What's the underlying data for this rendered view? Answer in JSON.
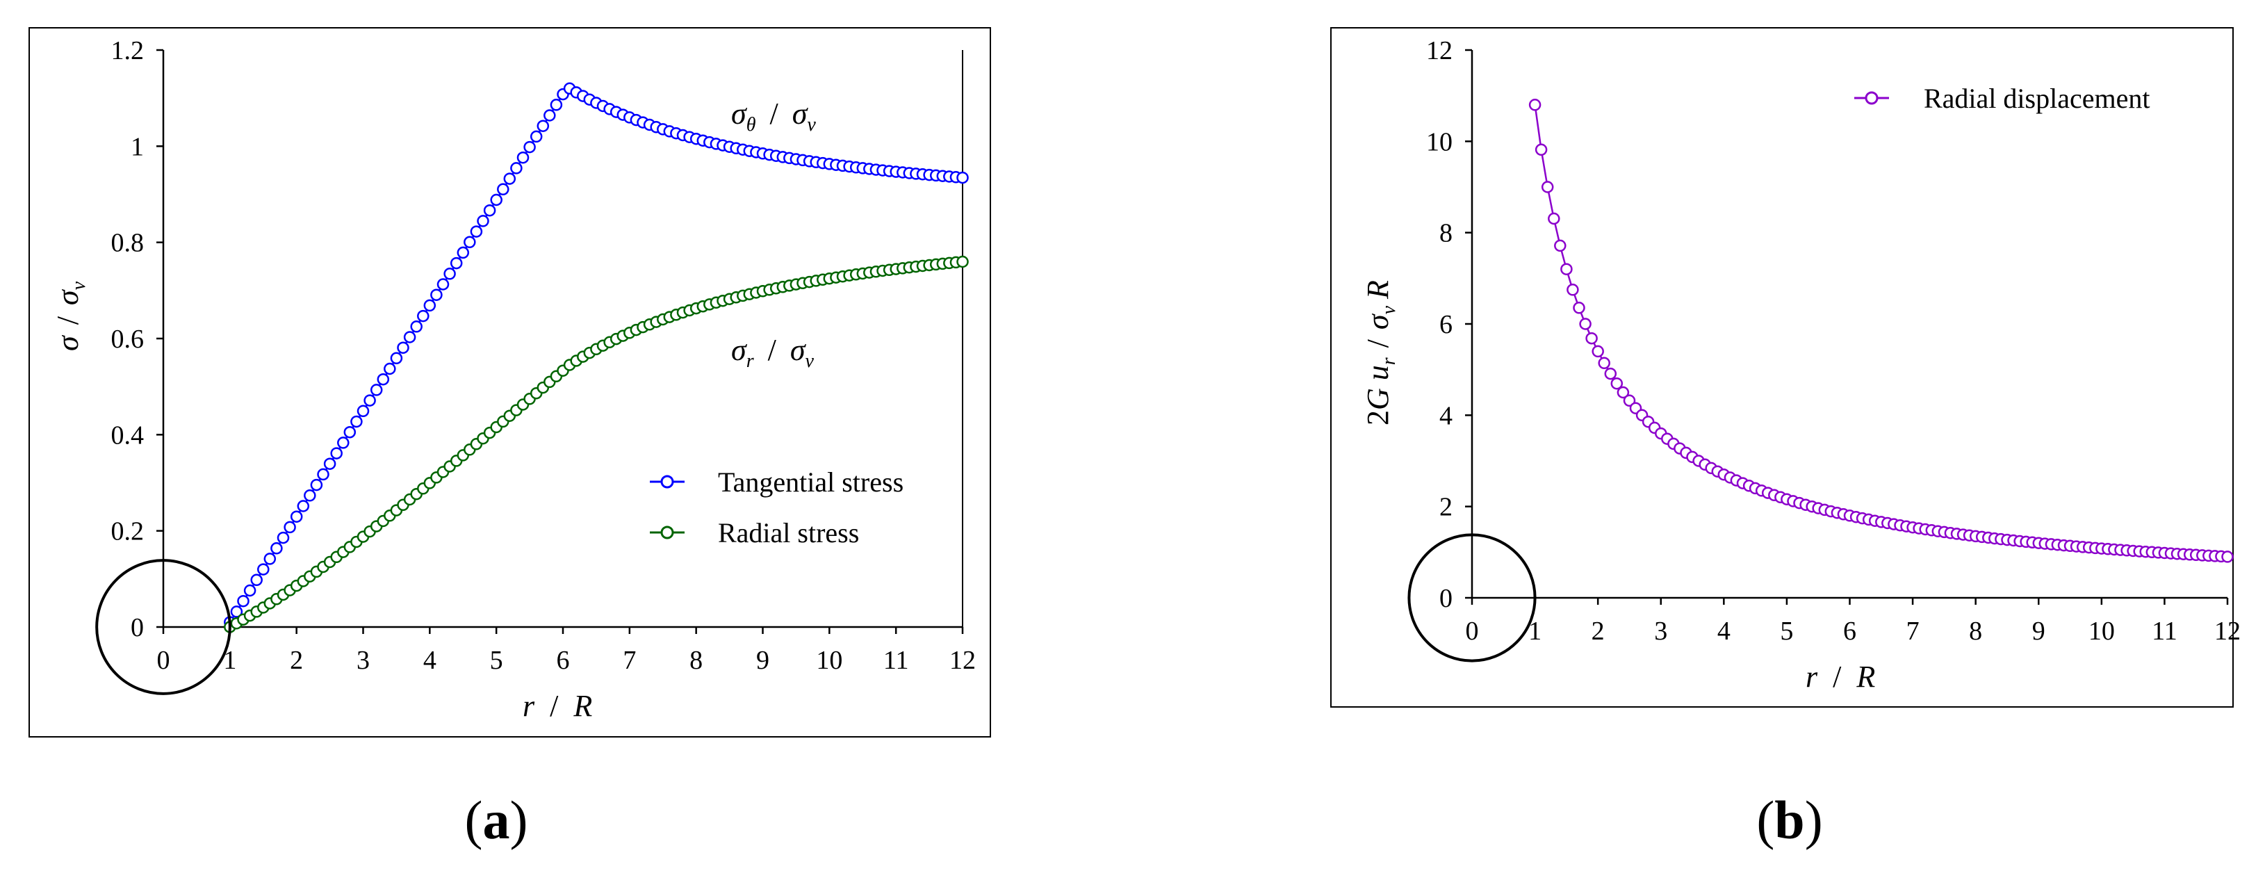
{
  "chart_data": [
    {
      "id": "a",
      "type": "line",
      "caption": "a",
      "xlabel": {
        "sym1": "r",
        "slash": "/",
        "sym2": "R"
      },
      "ylabel": {
        "sym1": "σ",
        "slash": "/",
        "sym2": "σ",
        "sub2": "v"
      },
      "xlim": [
        0,
        12
      ],
      "ylim": [
        0,
        1.2
      ],
      "xticks": [
        "0",
        "1",
        "2",
        "3",
        "4",
        "5",
        "6",
        "7",
        "8",
        "9",
        "10",
        "11",
        "12"
      ],
      "yticks": [
        "0",
        "0.2",
        "0.4",
        "0.6",
        "0.8",
        "1",
        "1.2"
      ],
      "annotations": [
        {
          "sym1": "σ",
          "sub1": "θ",
          "slash": "/",
          "sym2": "σ",
          "sub2": "v"
        },
        {
          "sym1": "σ",
          "sub1": "r",
          "slash": "/",
          "sym2": "σ",
          "sub2": "v"
        }
      ],
      "legend_position": "center-right",
      "series": [
        {
          "name": "Tangential stress",
          "color": "#0000ff",
          "model": "tangential",
          "x_start": 1,
          "x_end": 12,
          "step": 0.1
        },
        {
          "name": "Radial stress",
          "color": "#006400",
          "model": "radial",
          "x_start": 1,
          "x_end": 12,
          "step": 0.1
        }
      ],
      "hole_radius": 1,
      "hole_center": [
        0,
        0
      ]
    },
    {
      "id": "b",
      "type": "line",
      "caption": "b",
      "xlabel": {
        "sym1": "r",
        "slash": "/",
        "sym2": "R"
      },
      "ylabel": {
        "pre": "2",
        "sym1": "G u",
        "sub1": "r",
        "slash": "/",
        "sym2": "σ",
        "sub2": "v",
        "post": "R"
      },
      "xlim": [
        0,
        12
      ],
      "ylim": [
        0,
        12
      ],
      "xticks": [
        "0",
        "1",
        "2",
        "3",
        "4",
        "5",
        "6",
        "7",
        "8",
        "9",
        "10",
        "11",
        "12"
      ],
      "yticks": [
        "0",
        "2",
        "4",
        "6",
        "8",
        "10",
        "12"
      ],
      "legend_position": "top-right",
      "series": [
        {
          "name": "Radial displacement",
          "color": "#8b00cc",
          "model": "displacement",
          "x_start": 1,
          "x_end": 12,
          "step": 0.1
        }
      ],
      "hole_radius": 1,
      "hole_center": [
        0,
        0
      ]
    }
  ]
}
